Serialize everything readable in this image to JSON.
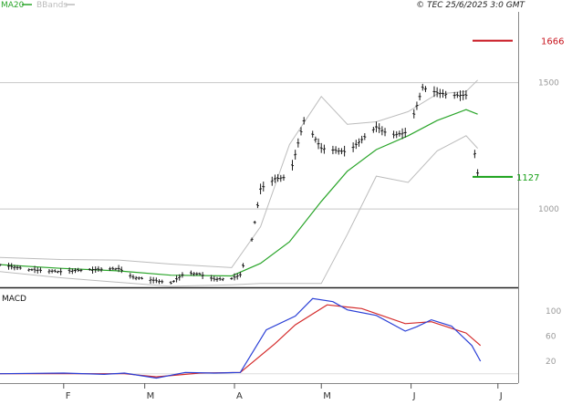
{
  "legend": {
    "ma_label": "MA20",
    "bb_label": "BBands",
    "ma_color": "#2aa52a",
    "bb_color": "#bcbcbc"
  },
  "copyright": "© TEC 25/6/2025 3:0 GMT",
  "macd_label": "MACD",
  "colors": {
    "price_bars": "#1a1a1a",
    "ma20": "#2aa52a",
    "bbands": "#bcbcbc",
    "macd_line": "#2a3fd6",
    "signal_line": "#d42a2a",
    "resistance": "#c8141e",
    "support": "#16a016",
    "grid": "#c8c8c8"
  },
  "chart_data": [
    {
      "type": "line",
      "panel": "price",
      "ylim": [
        690,
        1780
      ],
      "y_ticks": [
        {
          "value": 1000,
          "label": "1000"
        },
        {
          "value": 1500,
          "label": "1500"
        }
      ],
      "x_ticks": [
        {
          "date": "2025-02-01",
          "label": "F"
        },
        {
          "date": "2025-03-01",
          "label": "M"
        },
        {
          "date": "2025-04-01",
          "label": "A"
        },
        {
          "date": "2025-05-01",
          "label": "M"
        },
        {
          "date": "2025-06-01",
          "label": "J"
        },
        {
          "date": "2025-07-01",
          "label": "J"
        }
      ],
      "x_range": [
        "2025-01-10",
        "2025-07-08"
      ],
      "levels": [
        {
          "name": "resistance",
          "value": 1666,
          "label": "1666",
          "color": "#c8141e"
        },
        {
          "name": "support",
          "value": 1127,
          "label": "1127",
          "color": "#16a016"
        }
      ],
      "close_series": [
        {
          "x": "2025-01-10",
          "y": 780
        },
        {
          "x": "2025-01-20",
          "y": 760
        },
        {
          "x": "2025-01-31",
          "y": 752
        },
        {
          "x": "2025-02-10",
          "y": 760
        },
        {
          "x": "2025-02-20",
          "y": 764
        },
        {
          "x": "2025-02-25",
          "y": 730
        },
        {
          "x": "2025-03-03",
          "y": 720
        },
        {
          "x": "2025-03-10",
          "y": 706
        },
        {
          "x": "2025-03-15",
          "y": 748
        },
        {
          "x": "2025-03-20",
          "y": 742
        },
        {
          "x": "2025-03-25",
          "y": 722
        },
        {
          "x": "2025-03-31",
          "y": 725
        },
        {
          "x": "2025-04-03",
          "y": 740
        },
        {
          "x": "2025-04-07",
          "y": 880
        },
        {
          "x": "2025-04-10",
          "y": 1080
        },
        {
          "x": "2025-04-15",
          "y": 1120
        },
        {
          "x": "2025-04-20",
          "y": 1127
        },
        {
          "x": "2025-04-25",
          "y": 1350
        },
        {
          "x": "2025-05-01",
          "y": 1240
        },
        {
          "x": "2025-05-10",
          "y": 1225
        },
        {
          "x": "2025-05-20",
          "y": 1325
        },
        {
          "x": "2025-05-25",
          "y": 1290
        },
        {
          "x": "2025-05-31",
          "y": 1305
        },
        {
          "x": "2025-06-05",
          "y": 1480
        },
        {
          "x": "2025-06-10",
          "y": 1460
        },
        {
          "x": "2025-06-15",
          "y": 1450
        },
        {
          "x": "2025-06-20",
          "y": 1450
        },
        {
          "x": "2025-06-24",
          "y": 1142
        }
      ],
      "ma20_series": [
        {
          "x": "2025-01-10",
          "y": 780
        },
        {
          "x": "2025-01-31",
          "y": 765
        },
        {
          "x": "2025-02-20",
          "y": 755
        },
        {
          "x": "2025-03-10",
          "y": 738
        },
        {
          "x": "2025-03-31",
          "y": 735
        },
        {
          "x": "2025-04-10",
          "y": 785
        },
        {
          "x": "2025-04-20",
          "y": 870
        },
        {
          "x": "2025-05-01",
          "y": 1030
        },
        {
          "x": "2025-05-10",
          "y": 1150
        },
        {
          "x": "2025-05-20",
          "y": 1235
        },
        {
          "x": "2025-05-31",
          "y": 1290
        },
        {
          "x": "2025-06-10",
          "y": 1350
        },
        {
          "x": "2025-06-20",
          "y": 1393
        },
        {
          "x": "2025-06-24",
          "y": 1375
        }
      ],
      "bb_upper_series": [
        {
          "x": "2025-01-10",
          "y": 808
        },
        {
          "x": "2025-01-31",
          "y": 800
        },
        {
          "x": "2025-02-20",
          "y": 798
        },
        {
          "x": "2025-03-10",
          "y": 782
        },
        {
          "x": "2025-03-31",
          "y": 768
        },
        {
          "x": "2025-04-10",
          "y": 930
        },
        {
          "x": "2025-04-20",
          "y": 1255
        },
        {
          "x": "2025-05-01",
          "y": 1445
        },
        {
          "x": "2025-05-10",
          "y": 1335
        },
        {
          "x": "2025-05-20",
          "y": 1345
        },
        {
          "x": "2025-05-31",
          "y": 1385
        },
        {
          "x": "2025-06-10",
          "y": 1455
        },
        {
          "x": "2025-06-20",
          "y": 1465
        },
        {
          "x": "2025-06-24",
          "y": 1510
        }
      ],
      "bb_lower_series": [
        {
          "x": "2025-01-10",
          "y": 752
        },
        {
          "x": "2025-01-31",
          "y": 728
        },
        {
          "x": "2025-02-20",
          "y": 710
        },
        {
          "x": "2025-03-10",
          "y": 694
        },
        {
          "x": "2025-03-31",
          "y": 700
        },
        {
          "x": "2025-04-10",
          "y": 705
        },
        {
          "x": "2025-04-20",
          "y": 705
        },
        {
          "x": "2025-05-01",
          "y": 705
        },
        {
          "x": "2025-05-10",
          "y": 900
        },
        {
          "x": "2025-05-20",
          "y": 1130
        },
        {
          "x": "2025-05-31",
          "y": 1105
        },
        {
          "x": "2025-06-10",
          "y": 1230
        },
        {
          "x": "2025-06-20",
          "y": 1290
        },
        {
          "x": "2025-06-24",
          "y": 1240
        }
      ]
    },
    {
      "type": "line",
      "panel": "macd",
      "ylim": [
        -15,
        135
      ],
      "y_ticks": [
        {
          "value": 20,
          "label": "20"
        },
        {
          "value": 60,
          "label": "60"
        },
        {
          "value": 100,
          "label": "100"
        }
      ],
      "macd_series": [
        {
          "x": "2025-01-10",
          "y": 0
        },
        {
          "x": "2025-02-01",
          "y": 1
        },
        {
          "x": "2025-02-15",
          "y": -1
        },
        {
          "x": "2025-02-22",
          "y": 1
        },
        {
          "x": "2025-03-05",
          "y": -7
        },
        {
          "x": "2025-03-15",
          "y": 2
        },
        {
          "x": "2025-03-25",
          "y": 1
        },
        {
          "x": "2025-04-03",
          "y": 2
        },
        {
          "x": "2025-04-12",
          "y": 70
        },
        {
          "x": "2025-04-22",
          "y": 92
        },
        {
          "x": "2025-04-28",
          "y": 120
        },
        {
          "x": "2025-05-05",
          "y": 115
        },
        {
          "x": "2025-05-10",
          "y": 102
        },
        {
          "x": "2025-05-20",
          "y": 93
        },
        {
          "x": "2025-05-30",
          "y": 68
        },
        {
          "x": "2025-06-03",
          "y": 75
        },
        {
          "x": "2025-06-08",
          "y": 86
        },
        {
          "x": "2025-06-15",
          "y": 76
        },
        {
          "x": "2025-06-22",
          "y": 45
        },
        {
          "x": "2025-06-25",
          "y": 20
        }
      ],
      "signal_series": [
        {
          "x": "2025-01-10",
          "y": 0
        },
        {
          "x": "2025-02-01",
          "y": 0
        },
        {
          "x": "2025-02-22",
          "y": 0
        },
        {
          "x": "2025-03-05",
          "y": -5
        },
        {
          "x": "2025-03-20",
          "y": 1
        },
        {
          "x": "2025-04-03",
          "y": 2
        },
        {
          "x": "2025-04-15",
          "y": 48
        },
        {
          "x": "2025-04-22",
          "y": 78
        },
        {
          "x": "2025-05-03",
          "y": 110
        },
        {
          "x": "2025-05-15",
          "y": 104
        },
        {
          "x": "2025-05-30",
          "y": 80
        },
        {
          "x": "2025-06-08",
          "y": 83
        },
        {
          "x": "2025-06-20",
          "y": 65
        },
        {
          "x": "2025-06-25",
          "y": 45
        }
      ]
    }
  ]
}
